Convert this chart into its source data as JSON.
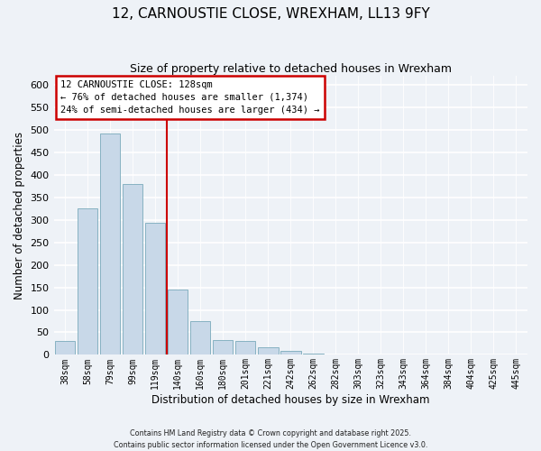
{
  "title": "12, CARNOUSTIE CLOSE, WREXHAM, LL13 9FY",
  "subtitle": "Size of property relative to detached houses in Wrexham",
  "xlabel": "Distribution of detached houses by size in Wrexham",
  "ylabel": "Number of detached properties",
  "bar_labels": [
    "38sqm",
    "58sqm",
    "79sqm",
    "99sqm",
    "119sqm",
    "140sqm",
    "160sqm",
    "180sqm",
    "201sqm",
    "221sqm",
    "242sqm",
    "262sqm",
    "282sqm",
    "303sqm",
    "323sqm",
    "343sqm",
    "364sqm",
    "384sqm",
    "404sqm",
    "425sqm",
    "445sqm"
  ],
  "bar_values": [
    30,
    325,
    492,
    380,
    293,
    145,
    75,
    32,
    30,
    17,
    8,
    3,
    1,
    0,
    0,
    0,
    0,
    0,
    0,
    0,
    1
  ],
  "bar_color": "#c8d8e8",
  "bar_edge_color": "#7aaabb",
  "background_color": "#eef2f7",
  "grid_color": "#ffffff",
  "ylim": [
    0,
    620
  ],
  "yticks": [
    0,
    50,
    100,
    150,
    200,
    250,
    300,
    350,
    400,
    450,
    500,
    550,
    600
  ],
  "vline_x_index": 4.5,
  "vline_color": "#cc0000",
  "annotation_title": "12 CARNOUSTIE CLOSE: 128sqm",
  "annotation_line1": "← 76% of detached houses are smaller (1,374)",
  "annotation_line2": "24% of semi-detached houses are larger (434) →",
  "footer1": "Contains HM Land Registry data © Crown copyright and database right 2025.",
  "footer2": "Contains public sector information licensed under the Open Government Licence v3.0."
}
